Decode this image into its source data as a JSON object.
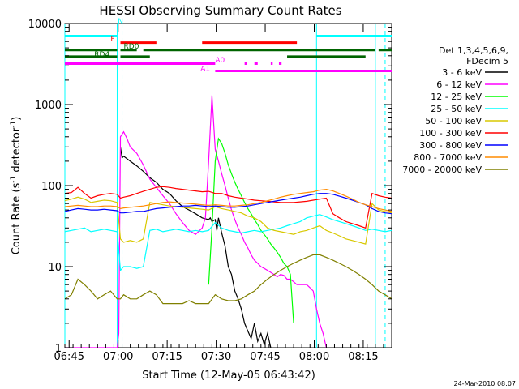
{
  "chart_data": {
    "type": "line",
    "title": "HESSI Observing Summary Count Rates",
    "xlabel": "Start Time (12-May-05 06:43:42)",
    "ylabel_main": "Count Rate (s",
    "ylabel_sup1": "-1",
    "ylabel_mid": " detector",
    "ylabel_sup2": "-1",
    "ylabel_end": ")",
    "ylog": true,
    "ylim": [
      1,
      10000
    ],
    "xlim_min": [
      0,
      100
    ],
    "y_ticks": [
      {
        "v": 1,
        "label": "1"
      },
      {
        "v": 10,
        "label": "10"
      },
      {
        "v": 100,
        "label": "100"
      },
      {
        "v": 1000,
        "label": "1000"
      },
      {
        "v": 10000,
        "label": "10000"
      }
    ],
    "x_ticks": [
      {
        "t": 1.3,
        "label": "06:45"
      },
      {
        "t": 16.3,
        "label": "07:00"
      },
      {
        "t": 31.3,
        "label": "07:15"
      },
      {
        "t": 46.3,
        "label": "07:30"
      },
      {
        "t": 61.3,
        "label": "07:45"
      },
      {
        "t": 76.3,
        "label": "08:00"
      },
      {
        "t": 91.3,
        "label": "08:15"
      }
    ],
    "footer_date": "24-Mar-2010 08:07",
    "legend": {
      "header1": "Det 1,3,4,5,6,9,",
      "header2": "FDecim 5",
      "entries": [
        {
          "label": "3 - 6 keV",
          "color": "#000000"
        },
        {
          "label": "6 - 12 keV",
          "color": "#ff00ff"
        },
        {
          "label": "12 - 25 keV",
          "color": "#00ff00"
        },
        {
          "label": "25 - 50 keV",
          "color": "#00ffff"
        },
        {
          "label": "50 - 100 keV",
          "color": "#d8c800"
        },
        {
          "label": "100 - 300 keV",
          "color": "#ff0000"
        },
        {
          "label": "300 - 800 keV",
          "color": "#0000ff"
        },
        {
          "label": "800 - 7000 keV",
          "color": "#ff8c00"
        },
        {
          "label": "7000 - 20000 keV",
          "color": "#808000"
        }
      ]
    },
    "flag_labels": [
      {
        "text": "N",
        "t": 16.2,
        "yr": 10000,
        "color": "#00ffff"
      },
      {
        "text": "F",
        "t": 14.0,
        "yr": 6000,
        "color": "#ff0000"
      },
      {
        "text": "RD0",
        "t": 18.0,
        "yr": 4900,
        "color": "#006400"
      },
      {
        "text": "RD4",
        "t": 9.0,
        "yr": 3900,
        "color": "#006400"
      },
      {
        "text": "A0",
        "t": 46.0,
        "yr": 3300,
        "color": "#ff00ff"
      },
      {
        "text": "A1",
        "t": 41.5,
        "yr": 2600,
        "color": "#ff00ff"
      }
    ],
    "flag_bars": [
      {
        "name": "N",
        "color": "#00ffff",
        "y": 7000,
        "segments": [
          [
            0,
            16
          ],
          [
            77,
            100
          ]
        ]
      },
      {
        "name": "F",
        "color": "#ff0000",
        "y": 5800,
        "segments": [
          [
            17,
            28
          ],
          [
            42,
            71
          ]
        ]
      },
      {
        "name": "RD0",
        "color": "#006400",
        "y": 4700,
        "segments": [
          [
            0,
            16
          ],
          [
            17,
            22
          ],
          [
            24,
            95
          ],
          [
            96,
            100
          ]
        ]
      },
      {
        "name": "RD4",
        "color": "#006400",
        "y": 3900,
        "segments": [
          [
            0,
            16
          ],
          [
            17,
            26
          ],
          [
            68,
            92
          ]
        ]
      },
      {
        "name": "A0",
        "color": "#ff00ff",
        "y": 3200,
        "segments": [
          [
            0,
            46
          ],
          [
            55,
            55.8
          ],
          [
            58,
            59
          ],
          [
            63,
            63.6
          ],
          [
            65.5,
            66.3
          ]
        ]
      },
      {
        "name": "A1",
        "color": "#ff00ff",
        "y": 2600,
        "segments": [
          [
            46,
            100
          ]
        ]
      }
    ],
    "vlines_solid": [
      0,
      16,
      77,
      95
    ],
    "vlines_dashed": [
      17.5,
      98
    ],
    "series": [
      {
        "name": "3 - 6 keV",
        "color": "#000000",
        "x": [
          17,
          17.5,
          18,
          20,
          22,
          24,
          26,
          28,
          30,
          32,
          34,
          36,
          38,
          40,
          42,
          44,
          44.5,
          45,
          46,
          46.5,
          47,
          48,
          49,
          50,
          51,
          52,
          53,
          54,
          55,
          56,
          57,
          58,
          59,
          60,
          61,
          62,
          63
        ],
        "values": [
          300,
          220,
          230,
          200,
          175,
          150,
          125,
          110,
          90,
          80,
          65,
          55,
          50,
          45,
          40,
          38,
          40,
          36,
          38,
          28,
          40,
          26,
          18,
          10,
          8,
          5,
          4,
          3,
          2,
          1.6,
          1.3,
          2,
          1.2,
          1.5,
          1.1,
          1.5,
          1
        ]
      },
      {
        "name": "6 - 12 keV",
        "color": "#ff00ff",
        "x": [
          0,
          14,
          16,
          16.5,
          17,
          18,
          19,
          20,
          22,
          24,
          26,
          28,
          30,
          32,
          34,
          36,
          38,
          40,
          42,
          43,
          44,
          45,
          46,
          47,
          48,
          49,
          50,
          51,
          52,
          53,
          54,
          55,
          56,
          57,
          58,
          59,
          60,
          61,
          62,
          63,
          64,
          65,
          66,
          67,
          68,
          69,
          70,
          71,
          72,
          73,
          74,
          75,
          76,
          77,
          78,
          79,
          80
        ],
        "values": [
          1,
          1,
          1,
          1.5,
          400,
          460,
          380,
          300,
          250,
          180,
          120,
          95,
          75,
          60,
          45,
          35,
          28,
          25,
          30,
          40,
          200,
          1300,
          280,
          200,
          140,
          100,
          70,
          50,
          38,
          30,
          25,
          20,
          17,
          14,
          12,
          11,
          10,
          9.5,
          9,
          8.5,
          8,
          7.5,
          8,
          7.8,
          7,
          7,
          6.5,
          6,
          6,
          6,
          6,
          5.5,
          5,
          3,
          2,
          1.5,
          1
        ]
      },
      {
        "name": "12 - 25 keV",
        "color": "#00ff00",
        "x": [
          44,
          45,
          46,
          47,
          48,
          49,
          50,
          51,
          52,
          53,
          54,
          55,
          56,
          57,
          58,
          59,
          60,
          61,
          62,
          63,
          64,
          65,
          66,
          67,
          68,
          69,
          70
        ],
        "values": [
          6,
          30,
          200,
          380,
          330,
          250,
          180,
          140,
          110,
          90,
          75,
          62,
          52,
          45,
          38,
          33,
          28,
          25,
          22,
          19,
          17,
          15,
          13,
          11,
          10,
          8,
          2
        ]
      },
      {
        "name": "25 - 50 keV",
        "color": "#00ffff",
        "x": [
          0,
          2,
          4,
          6,
          8,
          10,
          12,
          14,
          16,
          17,
          18,
          20,
          22,
          24,
          26,
          28,
          30,
          32,
          34,
          36,
          38,
          40,
          42,
          44,
          46,
          48,
          50,
          52,
          54,
          56,
          58,
          60,
          62,
          64,
          66,
          68,
          70,
          72,
          74,
          76,
          78,
          80,
          82,
          84,
          86,
          88,
          90,
          92,
          94,
          96,
          98,
          100
        ],
        "values": [
          27,
          28,
          29,
          30,
          27,
          28,
          29,
          28,
          27,
          9,
          10,
          10,
          9.5,
          10,
          28,
          29,
          27,
          28,
          29,
          28,
          27,
          28,
          27,
          28,
          35,
          30,
          28,
          27,
          26,
          27,
          28,
          27,
          28,
          29,
          30,
          32,
          34,
          36,
          40,
          42,
          44,
          41,
          38,
          36,
          34,
          32,
          30,
          28,
          29,
          28,
          27,
          28
        ]
      },
      {
        "name": "50 - 100 keV",
        "color": "#d8c800",
        "x": [
          0,
          2,
          4,
          6,
          8,
          10,
          12,
          14,
          16,
          17,
          18,
          20,
          22,
          24,
          26,
          28,
          30,
          32,
          34,
          36,
          38,
          40,
          42,
          44,
          46,
          48,
          50,
          52,
          54,
          56,
          58,
          60,
          62,
          64,
          66,
          68,
          70,
          72,
          74,
          76,
          78,
          80,
          82,
          84,
          86,
          88,
          90,
          92,
          94,
          96,
          98,
          100
        ],
        "values": [
          65,
          68,
          72,
          68,
          62,
          64,
          66,
          65,
          62,
          22,
          20,
          21,
          20,
          22,
          62,
          60,
          58,
          56,
          55,
          54,
          53,
          52,
          51,
          50,
          55,
          52,
          50,
          48,
          46,
          42,
          40,
          36,
          30,
          28,
          27,
          26,
          25,
          27,
          28,
          30,
          32,
          28,
          26,
          24,
          22,
          21,
          20,
          19,
          60,
          50,
          48,
          46
        ]
      },
      {
        "name": "100 - 300 keV",
        "color": "#ff0000",
        "x": [
          0,
          2,
          4,
          6,
          8,
          10,
          12,
          14,
          16,
          17,
          18,
          20,
          22,
          24,
          26,
          28,
          30,
          32,
          34,
          36,
          38,
          40,
          42,
          44,
          46,
          48,
          50,
          52,
          54,
          56,
          58,
          60,
          62,
          64,
          66,
          68,
          70,
          72,
          74,
          76,
          78,
          80,
          82,
          84,
          86,
          88,
          90,
          92,
          94,
          96,
          98,
          100
        ],
        "values": [
          80,
          82,
          95,
          80,
          70,
          75,
          78,
          80,
          78,
          70,
          72,
          75,
          80,
          85,
          90,
          95,
          97,
          95,
          92,
          90,
          88,
          86,
          84,
          85,
          80,
          80,
          75,
          72,
          70,
          68,
          66,
          65,
          64,
          63,
          62,
          62,
          62,
          63,
          64,
          66,
          68,
          70,
          45,
          40,
          36,
          34,
          32,
          30,
          80,
          75,
          72,
          70
        ]
      },
      {
        "name": "300 - 800 keV",
        "color": "#0000ff",
        "x": [
          0,
          2,
          4,
          6,
          8,
          10,
          12,
          14,
          16,
          17,
          18,
          20,
          22,
          24,
          26,
          28,
          30,
          32,
          34,
          36,
          38,
          40,
          42,
          44,
          46,
          48,
          50,
          52,
          54,
          56,
          58,
          60,
          62,
          64,
          66,
          68,
          70,
          72,
          74,
          76,
          78,
          80,
          82,
          84,
          86,
          88,
          90,
          92,
          94,
          96,
          98,
          100
        ],
        "values": [
          48,
          50,
          52,
          51,
          50,
          50,
          51,
          50,
          49,
          46,
          46,
          47,
          48,
          48,
          50,
          52,
          53,
          54,
          55,
          56,
          56,
          57,
          56,
          55,
          56,
          55,
          54,
          54,
          55,
          56,
          58,
          60,
          62,
          64,
          66,
          68,
          70,
          72,
          75,
          78,
          80,
          80,
          78,
          74,
          70,
          66,
          62,
          58,
          52,
          48,
          46,
          45
        ]
      },
      {
        "name": "800 - 7000 keV",
        "color": "#ff8c00",
        "x": [
          0,
          2,
          4,
          6,
          8,
          10,
          12,
          14,
          16,
          17,
          18,
          20,
          22,
          24,
          26,
          28,
          30,
          32,
          34,
          36,
          38,
          40,
          42,
          44,
          46,
          48,
          50,
          52,
          54,
          56,
          58,
          60,
          62,
          64,
          66,
          68,
          70,
          72,
          74,
          76,
          78,
          80,
          82,
          84,
          86,
          88,
          90,
          92,
          94,
          96,
          98,
          100
        ],
        "values": [
          55,
          56,
          57,
          56,
          55,
          55,
          56,
          56,
          55,
          52,
          53,
          54,
          55,
          56,
          58,
          60,
          62,
          63,
          62,
          61,
          60,
          59,
          58,
          57,
          58,
          57,
          56,
          56,
          57,
          58,
          60,
          62,
          65,
          68,
          72,
          75,
          78,
          80,
          82,
          84,
          88,
          90,
          86,
          80,
          74,
          68,
          62,
          58,
          55,
          52,
          50,
          48
        ]
      },
      {
        "name": "7000 - 20000 keV",
        "color": "#808000",
        "x": [
          0,
          2,
          4,
          6,
          8,
          10,
          12,
          14,
          16,
          17,
          18,
          20,
          22,
          24,
          26,
          28,
          30,
          32,
          34,
          36,
          38,
          40,
          42,
          44,
          46,
          48,
          50,
          52,
          54,
          56,
          58,
          60,
          62,
          64,
          66,
          68,
          70,
          72,
          74,
          76,
          78,
          80,
          82,
          84,
          86,
          88,
          90,
          92,
          94,
          96,
          98,
          100
        ],
        "values": [
          4,
          4.5,
          7,
          6,
          5,
          4,
          4.5,
          5,
          4,
          4,
          4.5,
          4,
          4,
          4.5,
          5,
          4.5,
          3.5,
          3.5,
          3.5,
          3.5,
          3.8,
          3.5,
          3.5,
          3.5,
          4.5,
          4,
          3.8,
          3.8,
          4,
          4.5,
          5,
          6,
          7,
          8,
          9,
          10,
          11,
          12,
          13,
          14,
          14,
          13,
          12,
          11,
          10,
          9,
          8,
          7,
          6,
          5,
          4.5,
          4
        ]
      }
    ]
  }
}
